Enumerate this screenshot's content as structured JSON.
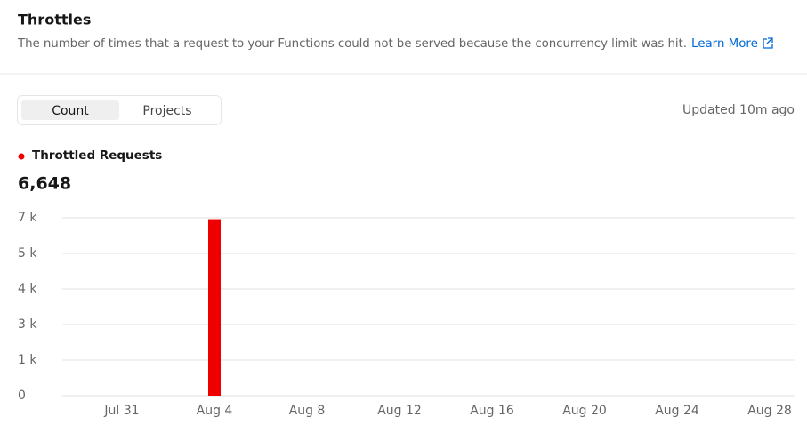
{
  "header": {
    "title": "Throttles",
    "description": "The number of times that a request to your Functions could not be served because the concurrency limit was hit.",
    "link": "Learn More"
  },
  "tabs": [
    "Count",
    "Projects"
  ],
  "updated": "Updated 10m ago",
  "chart_data": {
    "type": "bar",
    "total": "6,648",
    "categories": [
      "Jul 31",
      "Aug 4",
      "Aug 8",
      "Aug 12",
      "Aug 16",
      "Aug 20",
      "Aug 24",
      "Aug 28"
    ],
    "series": [
      {
        "name": "Throttled Requests",
        "color": "#ee0000",
        "values": [
          0,
          6648,
          0,
          0,
          0,
          0,
          0,
          0
        ]
      }
    ],
    "ylim": [
      0,
      6700
    ],
    "yticks": [
      {
        "value": 0,
        "label": "0"
      },
      {
        "value": 1340,
        "label": "1 k"
      },
      {
        "value": 2680,
        "label": "3 k"
      },
      {
        "value": 4020,
        "label": "4 k"
      },
      {
        "value": 5360,
        "label": "5 k"
      },
      {
        "value": 6700,
        "label": "7 k"
      }
    ],
    "grid": true
  }
}
